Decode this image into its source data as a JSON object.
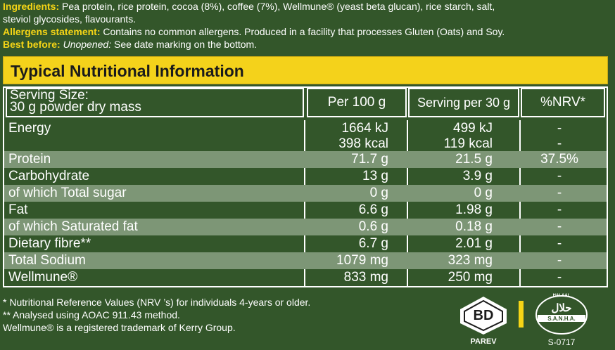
{
  "ingredients": {
    "label": "Ingredients:",
    "line1": "Pea protein, rice protein, cocoa (8%), coffee (7%), Wellmune® (yeast beta glucan), rice starch, salt,",
    "line2": "steviol glycosides, flavourants."
  },
  "allergens": {
    "label": "Allergens statement:",
    "text": "Contains no common allergens. Produced in a facility that processes Gluten (Oats) and Soy."
  },
  "best_before": {
    "label": "Best before:",
    "italic": "Unopened:",
    "text": "See date marking on the bottom."
  },
  "table": {
    "title": "Typical Nutritional Information",
    "headers": {
      "serving_line1": "Serving Size:",
      "serving_line2": "30 g powder dry mass",
      "per100": "Per 100 g",
      "per30": "Serving per 30 g",
      "nrv": "%NRV*"
    },
    "energy": {
      "label": "Energy",
      "per100_kj": "1664 kJ",
      "per100_kcal": "398 kcal",
      "per30_kj": "499 kJ",
      "per30_kcal": "119 kcal",
      "nrv1": "-",
      "nrv2": "-"
    },
    "rows": [
      {
        "label": "Protein",
        "per100": "71.7 g",
        "per30": "21.5 g",
        "nrv": "37.5%"
      },
      {
        "label": "Carbohydrate",
        "per100": "13 g",
        "per30": "3.9 g",
        "nrv": "-"
      },
      {
        "label": "of which Total sugar",
        "per100": "0 g",
        "per30": "0 g",
        "nrv": "-"
      },
      {
        "label": "Fat",
        "per100": "6.6 g",
        "per30": "1.98 g",
        "nrv": "-"
      },
      {
        "label": "of which Saturated fat",
        "per100": "0.6 g",
        "per30": "0.18 g",
        "nrv": "-"
      },
      {
        "label": "Dietary fibre**",
        "per100": "6.7 g",
        "per30": "2.01 g",
        "nrv": "-"
      },
      {
        "label": "Total Sodium",
        "per100": "1079 mg",
        "per30": "323 mg",
        "nrv": "-"
      },
      {
        "label": "Wellmune®",
        "per100": "833 mg",
        "per30": "250 mg",
        "nrv": "-"
      }
    ]
  },
  "footnotes": {
    "line1": "* Nutritional Reference Values (NRV ’s) for individuals 4-years or older.",
    "line2": "** Analysed using AOAC 911.43 method.",
    "line3": "Wellmune® is a registered trademark of Kerry Group."
  },
  "logos": {
    "parev_label": "PAREV",
    "parev_mark": "BD",
    "halaal_top": "HALAAL",
    "halaal_mid": "حلال",
    "halaal_band": "S.A.N.H.A.",
    "halaal_code": "S-0717"
  },
  "colors": {
    "accent_yellow": "#f6d516",
    "background_green": "#33562a",
    "row_shade": "#7d9676"
  }
}
